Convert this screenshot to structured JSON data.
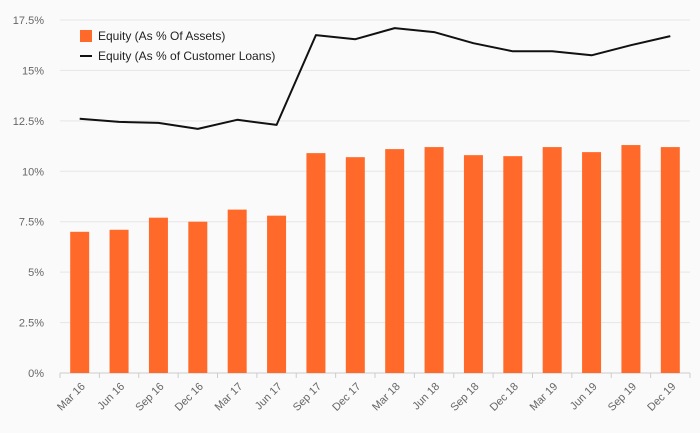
{
  "chart_data": {
    "type": "bar",
    "title": "",
    "xlabel": "",
    "ylabel": "",
    "categories": [
      "Mar 16",
      "Jun 16",
      "Sep 16",
      "Dec 16",
      "Mar 17",
      "Jun 17",
      "Sep 17",
      "Dec 17",
      "Mar 18",
      "Jun 18",
      "Sep 18",
      "Dec 18",
      "Mar 19",
      "Jun 19",
      "Sep 19",
      "Dec 19"
    ],
    "ylim": [
      0,
      17.5
    ],
    "yticks": [
      0,
      2.5,
      5,
      7.5,
      10,
      12.5,
      15,
      17.5
    ],
    "ytick_labels": [
      "0%",
      "2.5%",
      "5%",
      "7.5%",
      "10%",
      "12.5%",
      "15%",
      "17.5%"
    ],
    "grid": true,
    "legend_position": "top-left",
    "series": [
      {
        "name": "Equity (As % Of Assets)",
        "type": "bar",
        "color": "#ff6a2a",
        "values": [
          7.0,
          7.1,
          7.7,
          7.5,
          8.1,
          7.8,
          10.9,
          10.7,
          11.1,
          11.2,
          10.8,
          10.75,
          11.2,
          10.95,
          11.3,
          11.2
        ]
      },
      {
        "name": "Equity (As % of Customer Loans)",
        "type": "line",
        "color": "#111111",
        "values": [
          12.6,
          12.45,
          12.4,
          12.1,
          12.55,
          12.3,
          16.75,
          16.55,
          17.1,
          16.9,
          16.35,
          15.95,
          15.95,
          15.75,
          16.25,
          16.7
        ]
      }
    ]
  }
}
